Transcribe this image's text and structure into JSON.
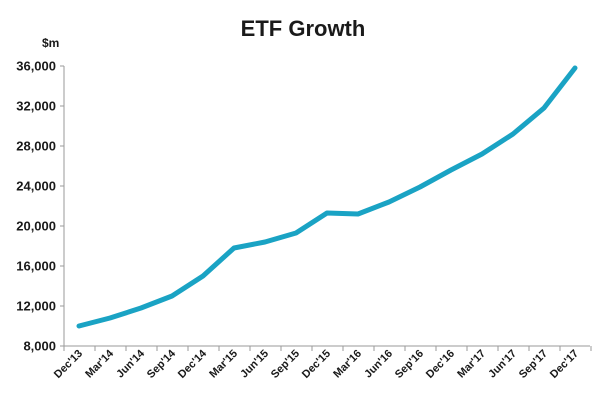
{
  "chart_data": {
    "type": "line",
    "title": "ETF Growth",
    "ylabel": "$m",
    "xlabel": "",
    "ylim": [
      8000,
      36000
    ],
    "yticks": [
      "8,000",
      "12,000",
      "16,000",
      "20,000",
      "24,000",
      "28,000",
      "32,000",
      "36,000"
    ],
    "ytick_values": [
      8000,
      12000,
      16000,
      20000,
      24000,
      28000,
      32000,
      36000
    ],
    "categories": [
      "Dec'13",
      "Mar'14",
      "Jun'14",
      "Sep'14",
      "Dec'14",
      "Mar'15",
      "Jun'15",
      "Sep'15",
      "Dec'15",
      "Mar'16",
      "Jun'16",
      "Sep'16",
      "Dec'16",
      "Mar'17",
      "Jun'17",
      "Sep'17",
      "Dec'17"
    ],
    "series": [
      {
        "values": [
          10000,
          10800,
          11800,
          13000,
          15000,
          17800,
          18400,
          19300,
          21300,
          21200,
          22400,
          23900,
          25600,
          27200,
          29200,
          31800,
          35800
        ],
        "color": "#1aa3c4"
      }
    ],
    "grid": false,
    "legend": "none"
  }
}
